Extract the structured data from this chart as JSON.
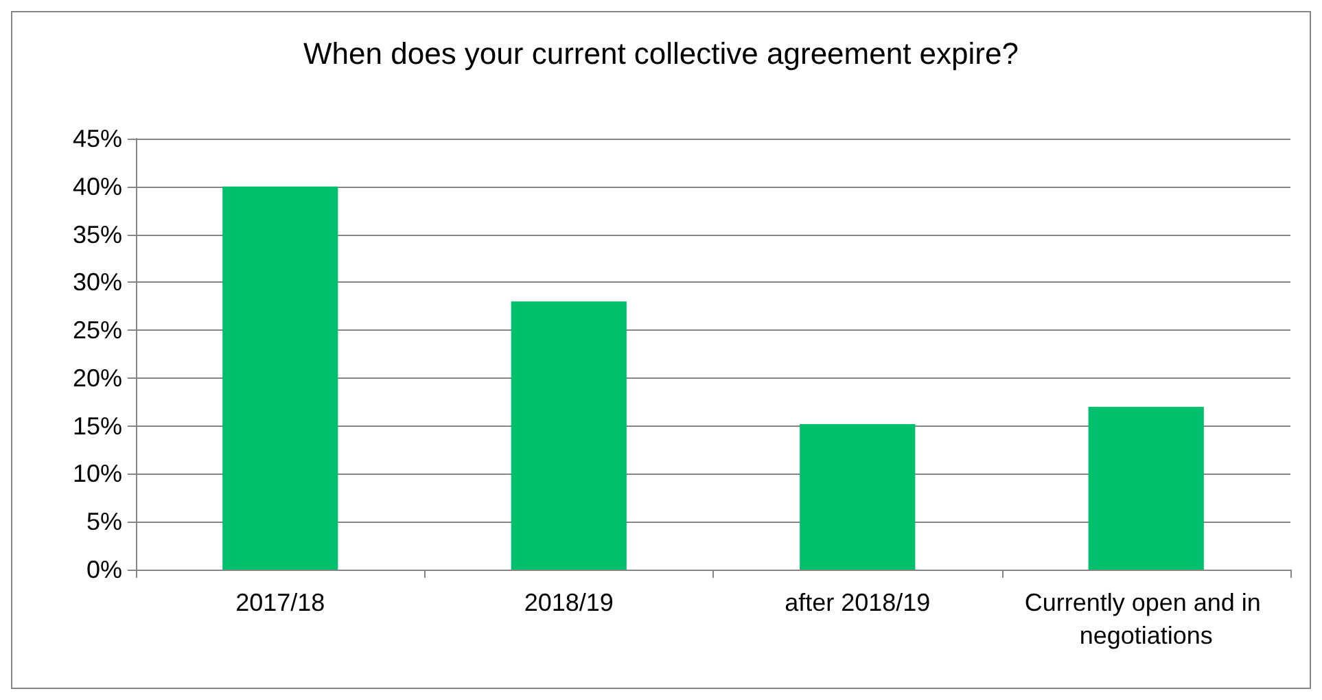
{
  "chart_data": {
    "type": "bar",
    "title": "When does your current collective agreement expire?",
    "categories": [
      "2017/18",
      "2018/19",
      "after 2018/19",
      "Currently open and in negotiations"
    ],
    "values": [
      40,
      28,
      15.2,
      17
    ],
    "color": "#00c06e",
    "ylim": [
      0,
      45
    ],
    "yticks": [
      {
        "value": 0,
        "label": "0%"
      },
      {
        "value": 5,
        "label": "5%"
      },
      {
        "value": 10,
        "label": "10%"
      },
      {
        "value": 15,
        "label": "15%"
      },
      {
        "value": 20,
        "label": "20%"
      },
      {
        "value": 25,
        "label": "25%"
      },
      {
        "value": 30,
        "label": "30%"
      },
      {
        "value": 35,
        "label": "35%"
      },
      {
        "value": 40,
        "label": "40%"
      },
      {
        "value": 45,
        "label": "45%"
      }
    ],
    "grid": "y"
  }
}
